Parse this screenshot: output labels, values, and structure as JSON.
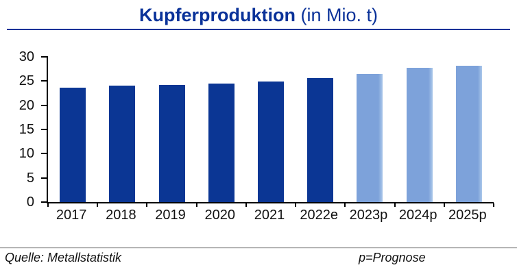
{
  "title": {
    "main": "Kupferproduktion",
    "suffix": " (in Mio. t)"
  },
  "footer": {
    "source": "Quelle: Metallstatistik",
    "note": "p=Prognose"
  },
  "colors": {
    "title": "#0a3299",
    "bar_actual": "#0b3694",
    "bar_forecast": "#7da2da",
    "bar_forecast_edge": "#abc8ea",
    "axis": "#000000",
    "separator": "#a6a6a6"
  },
  "chart_data": {
    "type": "bar",
    "title": "Kupferproduktion (in Mio. t)",
    "categories": [
      "2017",
      "2018",
      "2019",
      "2020",
      "2021",
      "2022e",
      "2023p",
      "2024p",
      "2025p"
    ],
    "values": [
      23.7,
      24.1,
      24.2,
      24.5,
      24.9,
      25.6,
      26.5,
      27.8,
      28.2
    ],
    "bar_styles": [
      "actual",
      "actual",
      "actual",
      "actual",
      "actual",
      "actual",
      "forecast",
      "forecast",
      "forecast"
    ],
    "series_note": "dark blue = actual/estimate, light blue = forecast (p=Prognose)",
    "xlabel": "",
    "ylabel": "",
    "ylim": [
      0,
      30
    ],
    "yticks": [
      0,
      5,
      10,
      15,
      20,
      25,
      30
    ],
    "grid": false,
    "legend": false
  }
}
